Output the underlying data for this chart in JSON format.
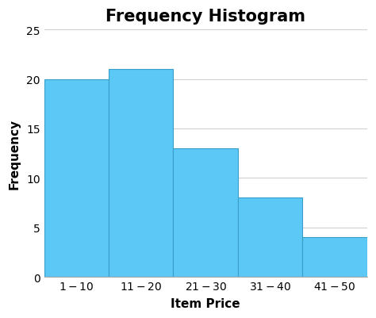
{
  "title": "Frequency Histogram",
  "xlabel": "Item Price",
  "ylabel": "Frequency",
  "categories": [
    "$1 - $10",
    "$11 - $20",
    "$21 - $30",
    "$31 - $40",
    "$41 - $50"
  ],
  "values": [
    20,
    21,
    13,
    8,
    4
  ],
  "bar_color": "#5BC8F5",
  "bar_edge_color": "#3a9fc8",
  "ylim": [
    0,
    25
  ],
  "yticks": [
    0,
    5,
    10,
    15,
    20,
    25
  ],
  "background_color": "#ffffff",
  "grid_color": "#d0d0d0",
  "title_fontsize": 15,
  "label_fontsize": 11,
  "tick_fontsize": 10
}
